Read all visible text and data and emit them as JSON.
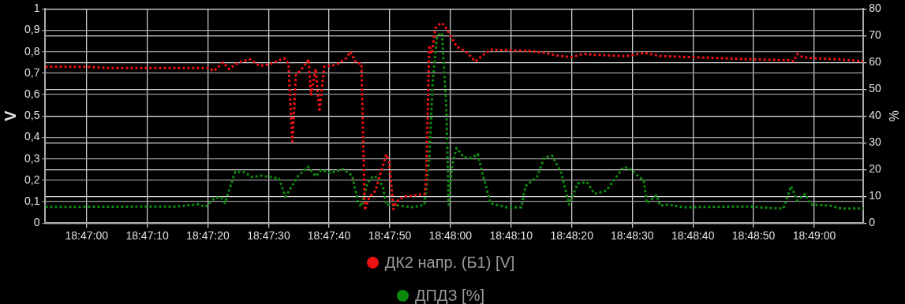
{
  "chart_data": {
    "type": "line",
    "ylabel": "V",
    "y2label": "%",
    "xlim": [
      18.78144,
      18.81892
    ],
    "xticks": [
      {
        "value": 18.78333,
        "label": "18:47:00"
      },
      {
        "value": 18.78611,
        "label": "18:47:10"
      },
      {
        "value": 18.78889,
        "label": "18:47:20"
      },
      {
        "value": 18.79167,
        "label": "18:47:30"
      },
      {
        "value": 18.79444,
        "label": "18:47:40"
      },
      {
        "value": 18.79722,
        "label": "18:47:50"
      },
      {
        "value": 18.8,
        "label": "18:48:00"
      },
      {
        "value": 18.80278,
        "label": "18:48:10"
      },
      {
        "value": 18.80556,
        "label": "18:48:20"
      },
      {
        "value": 18.80833,
        "label": "18:48:30"
      },
      {
        "value": 18.81111,
        "label": "18:48:40"
      },
      {
        "value": 18.81389,
        "label": "18:48:50"
      },
      {
        "value": 18.81667,
        "label": "18:49:00"
      }
    ],
    "ylim": [
      0,
      1
    ],
    "yticks": [
      0,
      {
        "value": 0.1,
        "label": "0,1"
      },
      {
        "value": 0.2,
        "label": "0,2"
      },
      {
        "value": 0.3,
        "label": "0,3"
      },
      {
        "value": 0.4,
        "label": "0,4"
      },
      {
        "value": 0.5,
        "label": "0,5"
      },
      {
        "value": 0.6,
        "label": "0,6"
      },
      {
        "value": 0.7,
        "label": "0,7"
      },
      {
        "value": 0.8,
        "label": "0,8"
      },
      {
        "value": 0.9,
        "label": "0,9"
      },
      1
    ],
    "y2lim": [
      0,
      80
    ],
    "y2ticks": [
      0,
      10,
      20,
      30,
      40,
      50,
      60,
      70,
      80
    ],
    "grid": true,
    "legend": "bottom",
    "marker": "none",
    "line_style": "dotted",
    "series": [
      {
        "name": "ДК2 напр. (Б1) [V]",
        "color": "#ee1111",
        "x": [
          18.78144,
          18.78333,
          18.78417,
          18.78889,
          18.78917,
          18.78958,
          18.78986,
          18.79028,
          18.79083,
          18.79125,
          18.79167,
          18.79239,
          18.79258,
          18.79276,
          18.79292,
          18.79331,
          18.7935,
          18.79361,
          18.79383,
          18.794,
          18.79422,
          18.79478,
          18.79522,
          18.79542,
          18.79567,
          18.79592,
          18.79608,
          18.79628,
          18.79656,
          18.79706,
          18.79719,
          18.79739,
          18.79761,
          18.79797,
          18.79881,
          18.79889,
          18.79903,
          18.79914,
          18.79931,
          18.79956,
          18.79972,
          18.8,
          18.80028,
          18.80072,
          18.80114,
          18.80156,
          18.80183,
          18.80361,
          18.80431,
          18.80503,
          18.80556,
          18.80608,
          18.80678,
          18.80803,
          18.80892,
          18.80961,
          18.81103,
          18.81244,
          18.81386,
          18.81561,
          18.81572,
          18.81589,
          18.81614,
          18.81667,
          18.81775,
          18.81892
        ],
        "values": [
          0.73,
          0.73,
          0.725,
          0.725,
          0.71,
          0.75,
          0.72,
          0.75,
          0.765,
          0.735,
          0.74,
          0.77,
          0.745,
          0.38,
          0.69,
          0.735,
          0.765,
          0.6,
          0.72,
          0.52,
          0.73,
          0.74,
          0.77,
          0.8,
          0.75,
          0.745,
          0.06,
          0.12,
          0.15,
          0.32,
          0.29,
          0.065,
          0.11,
          0.125,
          0.135,
          0.2,
          0.83,
          0.79,
          0.91,
          0.935,
          0.925,
          0.875,
          0.825,
          0.8,
          0.755,
          0.79,
          0.81,
          0.805,
          0.795,
          0.78,
          0.775,
          0.79,
          0.785,
          0.78,
          0.795,
          0.78,
          0.775,
          0.77,
          0.765,
          0.76,
          0.755,
          0.79,
          0.775,
          0.77,
          0.765,
          0.755
        ]
      },
      {
        "name": "ДПДЗ [%]",
        "color": "#0b8a0b",
        "axis": "y2",
        "x": [
          18.78144,
          18.7875,
          18.78844,
          18.78878,
          18.78922,
          18.7895,
          18.78967,
          18.79014,
          18.79056,
          18.79092,
          18.79133,
          18.79214,
          18.79244,
          18.79303,
          18.79347,
          18.79383,
          18.79408,
          18.7945,
          18.79508,
          18.7955,
          18.79578,
          18.79592,
          18.79619,
          18.79644,
          18.79672,
          18.79692,
          18.79706,
          18.79761,
          18.79831,
          18.79881,
          18.79903,
          18.79919,
          18.79939,
          18.79961,
          18.79981,
          18.79992,
          18.80008,
          18.80028,
          18.80061,
          18.80097,
          18.80125,
          18.80156,
          18.80183,
          18.80256,
          18.80325,
          18.80344,
          18.80397,
          18.80431,
          18.80467,
          18.80508,
          18.80544,
          18.80583,
          18.80625,
          18.80661,
          18.80714,
          18.80792,
          18.80819,
          18.80886,
          18.809,
          18.80944,
          18.80961,
          18.80997,
          18.81067,
          18.8135,
          18.81525,
          18.81561,
          18.81589,
          18.81625,
          18.8165,
          18.81739,
          18.81792,
          18.81892
        ],
        "values": [
          6,
          6.2,
          7,
          6,
          9.5,
          9.5,
          7.5,
          19.2,
          19,
          17.2,
          17.7,
          16.7,
          9.8,
          17.7,
          21,
          17.5,
          19.8,
          18.7,
          20.2,
          17.7,
          7.4,
          6.2,
          14.8,
          17.5,
          16.8,
          12.8,
          6.9,
          6.5,
          5.9,
          6.9,
          23.7,
          53,
          70,
          71,
          43.5,
          6.9,
          21.7,
          28,
          24.6,
          24.3,
          25.8,
          15.8,
          7.4,
          5.9,
          5.9,
          13.8,
          17.3,
          24.6,
          25.1,
          18.7,
          6.9,
          14.8,
          15.3,
          10.9,
          12.1,
          20.9,
          20.5,
          15.8,
          7.4,
          10.4,
          6.5,
          6.9,
          5.9,
          6.2,
          5.4,
          13.8,
          8.4,
          10.9,
          6.9,
          6.5,
          5.4,
          5.4
        ]
      }
    ]
  }
}
